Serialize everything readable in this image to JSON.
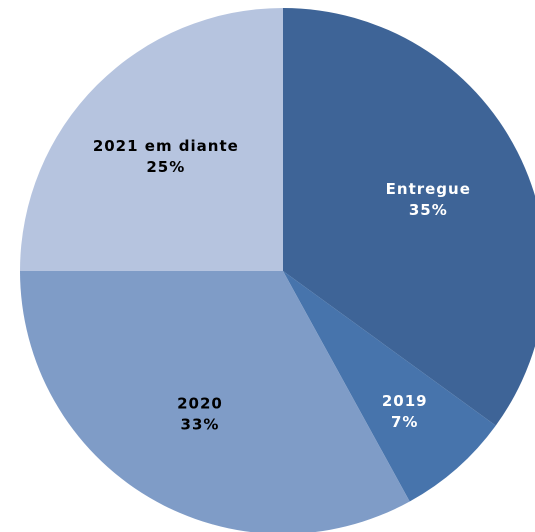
{
  "chart_data": {
    "type": "pie",
    "slices": [
      {
        "label": "Entregue",
        "value": 35,
        "percent_label": "35%",
        "color": "#3E6497",
        "label_color": "#ffffff"
      },
      {
        "label": "2019",
        "value": 7,
        "percent_label": "7%",
        "color": "#4774AC",
        "label_color": "#ffffff"
      },
      {
        "label": "2020",
        "value": 33,
        "percent_label": "33%",
        "color": "#7F9CC7",
        "label_color": "#000000"
      },
      {
        "label": "2021 em diante",
        "value": 25,
        "percent_label": "25%",
        "color": "#B6C4DF",
        "label_color": "#000000"
      }
    ],
    "start_angle_deg": 0,
    "direction": "clockwise",
    "legend": "none"
  }
}
